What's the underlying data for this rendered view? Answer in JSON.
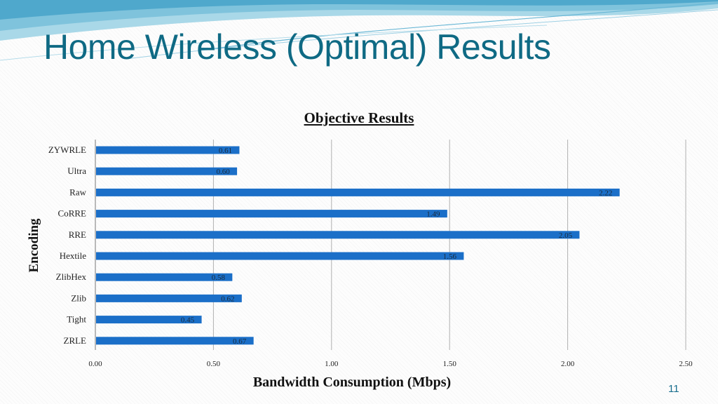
{
  "slide": {
    "title": "Home Wireless (Optimal) Results",
    "page_number": "11"
  },
  "colors": {
    "title": "#0f6a84",
    "bar": "#1b6fc8",
    "grid": "#b0b0b0"
  },
  "chart_data": {
    "type": "bar",
    "orientation": "horizontal",
    "title": "Objective Results",
    "xlabel": "Bandwidth Consumption (Mbps)",
    "ylabel": "Encoding",
    "categories": [
      "ZYWRLE",
      "Ultra",
      "Raw",
      "CoRRE",
      "RRE",
      "Hextile",
      "ZlibHex",
      "Zlib",
      "Tight",
      "ZRLE"
    ],
    "values": [
      0.61,
      0.6,
      2.22,
      1.49,
      2.05,
      1.56,
      0.58,
      0.62,
      0.45,
      0.67
    ],
    "data_labels": [
      "0.61",
      "0.60",
      "2.22",
      "1.49",
      "2.05",
      "1.56",
      "0.58",
      "0.62",
      "0.45",
      "0.67"
    ],
    "xlim": [
      0,
      2.5
    ],
    "xticks": [
      0,
      0.5,
      1.0,
      1.5,
      2.0,
      2.5
    ],
    "xtick_labels": [
      "0.00",
      "0.50",
      "1.00",
      "1.50",
      "2.00",
      "2.50"
    ],
    "grid": "vertical",
    "legend": "none"
  }
}
